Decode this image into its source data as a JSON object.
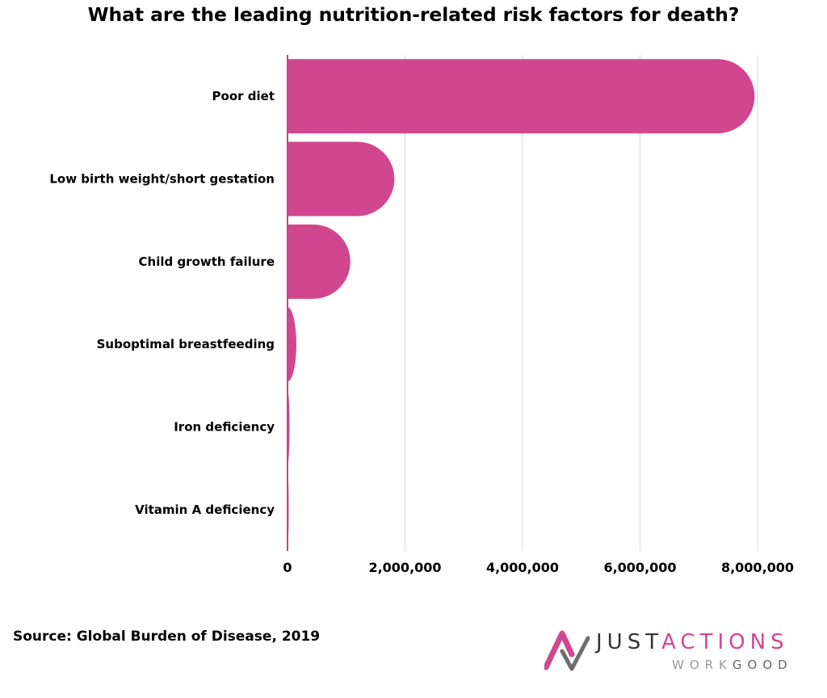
{
  "title": "What are the leading nutrition-related risk factors for death?",
  "source": "Source: Global Burden of Disease, 2019",
  "brand": {
    "part1": "JUST",
    "part2": "ACTIONS",
    "part3": "WORK",
    "part4": "GOOD"
  },
  "colors": {
    "bar": "#d1478f",
    "grid": "#d9d9d9",
    "axis": "#c24488"
  },
  "chart_data": {
    "type": "bar",
    "orientation": "horizontal",
    "categories": [
      "Poor diet",
      "Low birth weight/short gestation",
      "Child growth failure",
      "Suboptimal breastfeeding",
      "Iron deficiency",
      "Vitamin A deficiency"
    ],
    "values": [
      7950000,
      1820000,
      1070000,
      150000,
      35000,
      20000
    ],
    "xlim": [
      0,
      8000000
    ],
    "xticks": [
      0,
      2000000,
      4000000,
      6000000,
      8000000
    ],
    "xtick_labels": [
      "0",
      "2,000,000",
      "4,000,000",
      "6,000,000",
      "8,000,000"
    ],
    "grid": true
  }
}
